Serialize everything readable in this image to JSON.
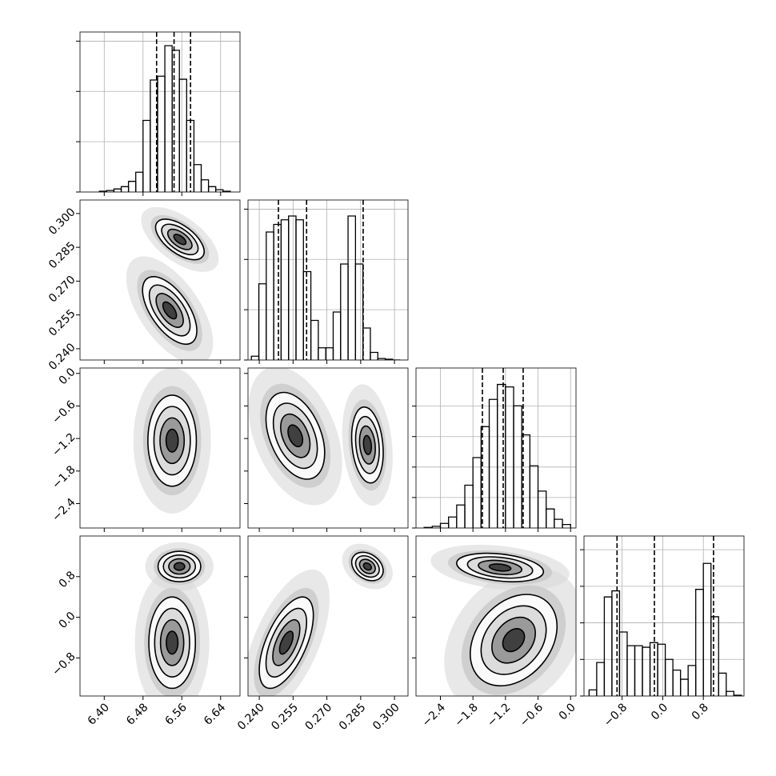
{
  "chart_data": {
    "type": "corner",
    "grid": true,
    "color": "#000000",
    "params": [
      {
        "lim": [
          6.35,
          6.68
        ],
        "ticks": [
          {
            "value": 6.4,
            "label": "6.40"
          },
          {
            "value": 6.48,
            "label": "6.48"
          },
          {
            "value": 6.56,
            "label": "6.56"
          },
          {
            "value": 6.64,
            "label": "6.64"
          }
        ],
        "bins": [
          6.39,
          6.405,
          6.42,
          6.435,
          6.45,
          6.465,
          6.48,
          6.495,
          6.51,
          6.525,
          6.54,
          6.555,
          6.57,
          6.585,
          6.6,
          6.615,
          6.63,
          6.645,
          6.66
        ],
        "counts": [
          5,
          10,
          20,
          35,
          70,
          130,
          470,
          735,
          760,
          960,
          930,
          740,
          470,
          180,
          80,
          35,
          15,
          5
        ],
        "hist_ylim": [
          0,
          1050
        ],
        "hist_yticks": [
          0,
          330,
          660,
          990
        ],
        "quantiles": [
          6.508,
          6.544,
          6.578
        ]
      },
      {
        "lim": [
          0.235,
          0.306
        ],
        "ticks": [
          {
            "value": 0.24,
            "label": "0.240"
          },
          {
            "value": 0.255,
            "label": "0.255"
          },
          {
            "value": 0.27,
            "label": "0.270"
          },
          {
            "value": 0.285,
            "label": "0.285"
          },
          {
            "value": 0.3,
            "label": "0.300"
          }
        ],
        "bins": [
          0.2365,
          0.2398,
          0.2431,
          0.2464,
          0.2497,
          0.253,
          0.2563,
          0.2596,
          0.2629,
          0.2662,
          0.2695,
          0.2728,
          0.2761,
          0.2794,
          0.2827,
          0.286,
          0.2893,
          0.2926,
          0.2959,
          0.2992,
          0.3025
        ],
        "counts": [
          25,
          500,
          840,
          890,
          920,
          945,
          920,
          580,
          260,
          80,
          80,
          315,
          630,
          945,
          630,
          210,
          50,
          10,
          5,
          0
        ],
        "hist_ylim": [
          0,
          1050
        ],
        "hist_yticks": [
          0,
          330,
          660,
          990
        ],
        "quantiles": [
          0.2485,
          0.261,
          0.2861
        ]
      },
      {
        "lim": [
          -2.85,
          0.1
        ],
        "ticks": [
          {
            "value": -2.4,
            "label": "−2.4"
          },
          {
            "value": -1.8,
            "label": "−1.8"
          },
          {
            "value": -1.2,
            "label": "−1.2"
          },
          {
            "value": -0.6,
            "label": "−0.6"
          },
          {
            "value": 0,
            "label": "0.0"
          }
        ],
        "bins": [
          -2.7,
          -2.55,
          -2.4,
          -2.25,
          -2.1,
          -1.95,
          -1.8,
          -1.65,
          -1.5,
          -1.35,
          -1.2,
          -1.05,
          -0.9,
          -0.75,
          -0.6,
          -0.45,
          -0.3,
          -0.15,
          0
        ],
        "counts": [
          4,
          11,
          30,
          72,
          151,
          281,
          462,
          665,
          844,
          942,
          926,
          802,
          611,
          408,
          242,
          125,
          57,
          23
        ],
        "hist_ylim": [
          0,
          1050
        ],
        "hist_yticks": [
          0,
          200,
          400,
          600,
          800
        ],
        "quantiles": [
          -1.626,
          -1.242,
          -0.874
        ]
      },
      {
        "lim": [
          -1.55,
          1.6
        ],
        "ticks": [
          {
            "value": -0.8,
            "label": "−0.8"
          },
          {
            "value": 0,
            "label": "0.0"
          },
          {
            "value": 0.8,
            "label": "0.8"
          }
        ],
        "bins": [
          -1.45,
          -1.3,
          -1.15,
          -1.0,
          -0.85,
          -0.7,
          -0.55,
          -0.4,
          -0.25,
          -0.1,
          0.05,
          0.2,
          0.35,
          0.5,
          0.65,
          0.8,
          0.95,
          1.1,
          1.25,
          1.4,
          1.55
        ],
        "counts": [
          40,
          220,
          650,
          690,
          420,
          330,
          330,
          320,
          350,
          340,
          240,
          170,
          110,
          200,
          700,
          870,
          520,
          150,
          30,
          5
        ],
        "hist_ylim": [
          0,
          1050
        ],
        "hist_yticks": [
          0,
          240,
          480,
          720,
          960
        ],
        "quantiles": [
          -0.9,
          -0.164,
          1.0
        ]
      }
    ],
    "pairs": [
      {
        "clusters": [
          {
            "x": 6.556,
            "y": 0.2885,
            "sx": 0.025,
            "sy": 0.0045,
            "rho": -0.6
          },
          {
            "x": 6.535,
            "y": 0.257,
            "sx": 0.028,
            "sy": 0.0075,
            "rho": -0.6
          }
        ]
      },
      {
        "clusters": [
          {
            "x": 6.54,
            "y": -1.24,
            "sx": 0.025,
            "sy": 0.42,
            "rho": 0
          }
        ]
      },
      {
        "clusters": [
          {
            "x": 0.256,
            "y": -1.15,
            "sx": 0.0065,
            "sy": 0.4,
            "rho": -0.4
          },
          {
            "x": 0.288,
            "y": -1.32,
            "sx": 0.0035,
            "sy": 0.35,
            "rho": -0.2
          }
        ]
      },
      {
        "clusters": [
          {
            "x": 6.555,
            "y": 1.0,
            "sx": 0.022,
            "sy": 0.15,
            "rho": 0
          },
          {
            "x": 6.54,
            "y": -0.5,
            "sx": 0.024,
            "sy": 0.45,
            "rho": 0
          }
        ]
      },
      {
        "clusters": [
          {
            "x": 0.288,
            "y": 1.0,
            "sx": 0.0035,
            "sy": 0.14,
            "rho": -0.3
          },
          {
            "x": 0.252,
            "y": -0.5,
            "sx": 0.006,
            "sy": 0.45,
            "rho": 0.6
          }
        ]
      },
      {
        "clusters": [
          {
            "x": -1.3,
            "y": 0.98,
            "sx": 0.4,
            "sy": 0.14,
            "rho": -0.3
          },
          {
            "x": -1.05,
            "y": -0.45,
            "sx": 0.4,
            "sy": 0.45,
            "rho": 0.3
          }
        ]
      }
    ]
  }
}
